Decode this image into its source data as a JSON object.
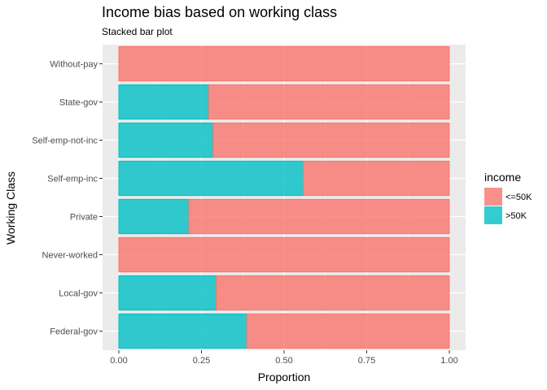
{
  "chart_data": {
    "type": "bar",
    "orientation": "horizontal",
    "stacked": true,
    "title": "Income bias based on working class",
    "subtitle": "Stacked bar plot",
    "xlabel": "Proportion",
    "ylabel": "Working Class",
    "xlim": [
      0,
      1
    ],
    "x_ticks": [
      "0.00",
      "0.25",
      "0.50",
      "0.75",
      "1.00"
    ],
    "x_tick_values": [
      0,
      0.25,
      0.5,
      0.75,
      1.0
    ],
    "categories": [
      "Without-pay",
      "State-gov",
      "Self-emp-not-inc",
      "Self-emp-inc",
      "Private",
      "Never-worked",
      "Local-gov",
      "Federal-gov"
    ],
    "series": [
      {
        "name": ">50K",
        "color": "#00bfc4",
        "values": [
          0.0,
          0.272,
          0.285,
          0.558,
          0.212,
          0.0,
          0.295,
          0.387
        ]
      },
      {
        "name": "<=50K",
        "color": "#f8766d",
        "values": [
          1.0,
          0.728,
          0.715,
          0.442,
          0.788,
          1.0,
          0.705,
          0.613
        ]
      }
    ],
    "legend": {
      "title": "income",
      "position": "right",
      "items": [
        {
          "label": "<=50K",
          "color": "#f8766d"
        },
        {
          "label": ">50K",
          "color": "#00bfc4"
        }
      ]
    },
    "grid": true,
    "panel_background": "#ebebeb"
  }
}
